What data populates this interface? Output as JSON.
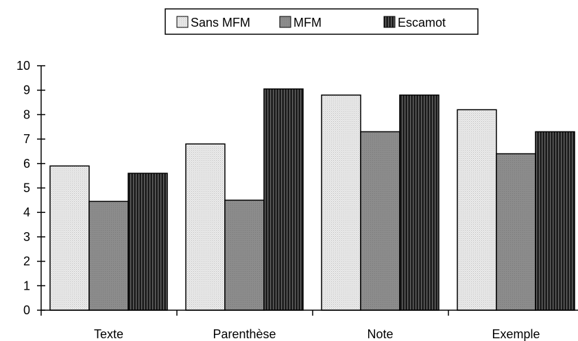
{
  "chart_data": {
    "type": "bar",
    "categories": [
      "Texte",
      "Parenthèse",
      "Note",
      "Exemple"
    ],
    "series": [
      {
        "name": "Sans MFM",
        "values": [
          5.9,
          6.8,
          8.8,
          8.2
        ],
        "color": "#e6e6e6",
        "pattern": "dots"
      },
      {
        "name": "MFM",
        "values": [
          4.45,
          4.5,
          7.3,
          6.4
        ],
        "color": "#8c8c8c",
        "pattern": "solid"
      },
      {
        "name": "Escamot",
        "values": [
          5.6,
          9.05,
          8.8,
          7.3
        ],
        "color": "#2e2e2e",
        "pattern": "vertical-stripes"
      }
    ],
    "yticks": [
      "0",
      "1",
      "2",
      "3",
      "4",
      "5",
      "6",
      "7",
      "8",
      "9",
      "10"
    ],
    "ylim": [
      0,
      10
    ],
    "grid": false,
    "legend_position": "top"
  }
}
